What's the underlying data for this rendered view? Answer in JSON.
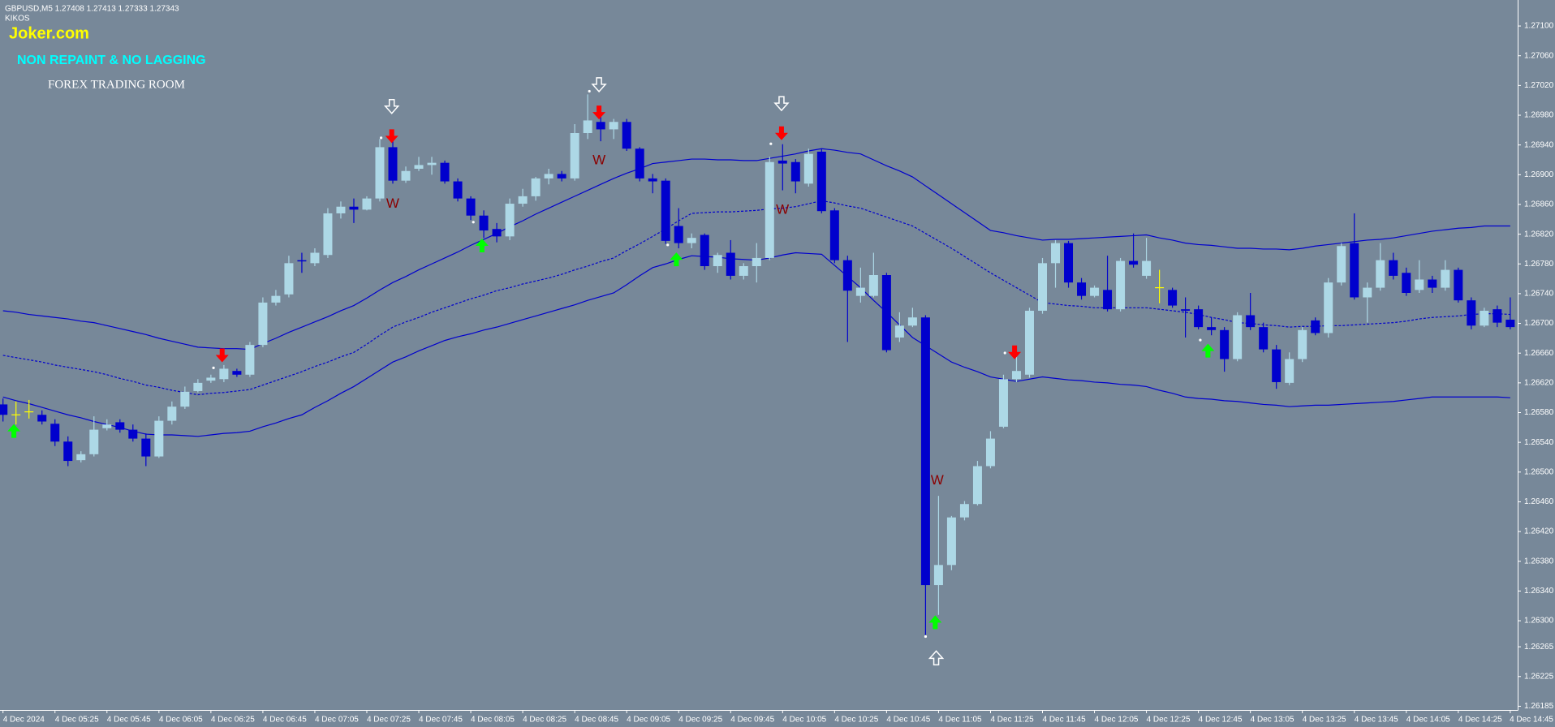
{
  "header": {
    "symbol_line": "GBPUSD,M5  1.27408 1.27413 1.27333 1.27343",
    "indicator": "KIKOS",
    "brand": "Joker.com",
    "tagline": "NON REPAINT & NO LAGGING",
    "room": "FOREX TRADING ROOM"
  },
  "chart_data": {
    "type": "candlestick",
    "background": "#778899",
    "up_color": "#add8e6",
    "down_color": "#0000cd",
    "doji_color": "#ffff00",
    "ylim": [
      1.2618,
      1.27135
    ],
    "yticks": [
      {
        "value": 1.271,
        "label": "1.27100"
      },
      {
        "value": 1.2706,
        "label": "1.27060"
      },
      {
        "value": 1.2702,
        "label": "1.27020"
      },
      {
        "value": 1.2698,
        "label": "1.26980"
      },
      {
        "value": 1.2694,
        "label": "1.26940"
      },
      {
        "value": 1.269,
        "label": "1.26900"
      },
      {
        "value": 1.2686,
        "label": "1.26860"
      },
      {
        "value": 1.2682,
        "label": "1.26820"
      },
      {
        "value": 1.2678,
        "label": "1.26780"
      },
      {
        "value": 1.2674,
        "label": "1.26740"
      },
      {
        "value": 1.267,
        "label": "1.26700"
      },
      {
        "value": 1.2666,
        "label": "1.26660"
      },
      {
        "value": 1.2662,
        "label": "1.26620"
      },
      {
        "value": 1.2658,
        "label": "1.26580"
      },
      {
        "value": 1.2654,
        "label": "1.26540"
      },
      {
        "value": 1.265,
        "label": "1.26500"
      },
      {
        "value": 1.2646,
        "label": "1.26460"
      },
      {
        "value": 1.2642,
        "label": "1.26420"
      },
      {
        "value": 1.2638,
        "label": "1.26380"
      },
      {
        "value": 1.2634,
        "label": "1.26340"
      },
      {
        "value": 1.263,
        "label": "1.26300"
      },
      1.26265,
      1.26225,
      1.26185
    ],
    "categories": [
      "4 Dec 2024",
      null,
      null,
      null,
      "4 Dec 05:25",
      null,
      null,
      null,
      "4 Dec 05:45",
      null,
      null,
      null,
      "4 Dec 06:05",
      null,
      null,
      null,
      "4 Dec 06:25",
      null,
      null,
      null,
      "4 Dec 06:45",
      null,
      null,
      null,
      "4 Dec 07:05",
      null,
      null,
      null,
      "4 Dec 07:25",
      null,
      null,
      null,
      "4 Dec 07:45",
      null,
      null,
      null,
      "4 Dec 08:05",
      null,
      null,
      null,
      "4 Dec 08:25",
      null,
      null,
      null,
      "4 Dec 08:45",
      null,
      null,
      null,
      "4 Dec 09:05",
      null,
      null,
      null,
      "4 Dec 09:25",
      null,
      null,
      null,
      "4 Dec 09:45",
      null,
      null,
      null,
      "4 Dec 10:05",
      null,
      null,
      null,
      "4 Dec 10:25",
      null,
      null,
      null,
      "4 Dec 10:45",
      null,
      null,
      null,
      "4 Dec 11:05",
      null,
      null,
      null,
      "4 Dec 11:25",
      null,
      null,
      null,
      "4 Dec 11:45",
      null,
      null,
      null,
      "4 Dec 12:05",
      null,
      null,
      null,
      "4 Dec 12:25",
      null,
      null,
      null,
      "4 Dec 12:45",
      null,
      null,
      null,
      "4 Dec 13:05",
      null,
      null,
      null,
      "4 Dec 13:25",
      null,
      null,
      null,
      "4 Dec 13:45",
      null,
      null,
      null,
      "4 Dec 14:05",
      null,
      null,
      null,
      "4 Dec 14:25",
      null,
      null,
      null,
      "4 Dec 14:45"
    ],
    "open": [
      1.26591,
      1.26577,
      1.26581,
      1.26577,
      1.26565,
      1.26541,
      1.26516,
      1.26524,
      1.26559,
      1.26567,
      1.26557,
      1.26545,
      1.26521,
      1.26569,
      1.26588,
      1.26609,
      1.26623,
      1.26625,
      1.26636,
      1.26631,
      1.26671,
      1.26728,
      1.26739,
      1.26785,
      1.26781,
      1.26792,
      1.26848,
      1.26857,
      1.26853,
      1.26868,
      1.26937,
      1.26892,
      1.26908,
      1.26913,
      1.26916,
      1.26891,
      1.26868,
      1.26845,
      1.26827,
      1.26817,
      1.26861,
      1.26871,
      1.26895,
      1.26901,
      1.26895,
      1.26956,
      1.26971,
      1.26961,
      1.26971,
      1.26935,
      1.26895,
      1.26892,
      1.26831,
      1.26808,
      1.26819,
      1.26777,
      1.26795,
      1.26764,
      1.26777,
      1.26788,
      1.26919,
      1.26917,
      1.26888,
      1.26931,
      1.26852,
      1.26785,
      1.26737,
      1.26737,
      1.26765,
      1.26681,
      1.26697,
      1.26708,
      1.26348,
      1.26375,
      1.26439,
      1.26457,
      1.26508,
      1.26561,
      1.26625,
      1.26631,
      1.26717,
      1.26781,
      1.26808,
      1.26755,
      1.26737,
      1.26745,
      1.26719,
      1.26784,
      1.26764,
      1.26748,
      1.26745,
      1.26719,
      1.26719,
      1.26695,
      1.26691,
      1.26652,
      1.26711,
      1.26695,
      1.26665,
      1.2662,
      1.26652,
      1.26704,
      1.26687,
      1.26755,
      1.26808,
      1.26735,
      1.26748,
      1.26785,
      1.26768,
      1.26745,
      1.26759,
      1.26748,
      1.26772,
      1.26731,
      1.26697,
      1.26719,
      1.26705
    ],
    "high": [
      1.26599,
      1.26595,
      1.26597,
      1.26583,
      1.26571,
      1.26548,
      1.26528,
      1.26575,
      1.26571,
      1.26571,
      1.26564,
      1.26552,
      1.26575,
      1.26595,
      1.26615,
      1.26625,
      1.26631,
      1.26644,
      1.26639,
      1.26675,
      1.26735,
      1.26745,
      1.26791,
      1.26795,
      1.26801,
      1.26855,
      1.26864,
      1.26868,
      1.26871,
      1.26948,
      1.26948,
      1.26911,
      1.26924,
      1.26924,
      1.26919,
      1.26895,
      1.26871,
      1.26852,
      1.26835,
      1.26868,
      1.26881,
      1.26897,
      1.26908,
      1.26905,
      1.26968,
      1.27008,
      1.26985,
      1.26975,
      1.26975,
      1.26937,
      1.26901,
      1.26895,
      1.26855,
      1.26821,
      1.26821,
      1.26795,
      1.26812,
      1.26781,
      1.26808,
      1.26924,
      1.26941,
      1.26921,
      1.26935,
      1.26935,
      1.26855,
      1.26791,
      1.26775,
      1.26795,
      1.26768,
      1.26715,
      1.26721,
      1.26711,
      1.26468,
      1.26441,
      1.26461,
      1.26515,
      1.26555,
      1.26631,
      1.26655,
      1.26721,
      1.26788,
      1.26812,
      1.26811,
      1.26761,
      1.26751,
      1.26791,
      1.26788,
      1.26821,
      1.26815,
      1.26772,
      1.26748,
      1.26735,
      1.26724,
      1.26708,
      1.26695,
      1.26715,
      1.26741,
      1.26701,
      1.26671,
      1.26661,
      1.26695,
      1.26708,
      1.26761,
      1.26808,
      1.26848,
      1.26755,
      1.26808,
      1.26795,
      1.26775,
      1.26785,
      1.26764,
      1.26785,
      1.26775,
      1.26735,
      1.26721,
      1.26724,
      1.26735
    ],
    "low": [
      1.26568,
      1.26564,
      1.26572,
      1.26564,
      1.26535,
      1.26508,
      1.26513,
      1.26521,
      1.26556,
      1.26553,
      1.26541,
      1.26508,
      1.26519,
      1.26564,
      1.26585,
      1.26607,
      1.2662,
      1.26621,
      1.26628,
      1.26628,
      1.26668,
      1.26724,
      1.26735,
      1.26768,
      1.26777,
      1.26788,
      1.26841,
      1.26835,
      1.26852,
      1.26864,
      1.26888,
      1.26889,
      1.26905,
      1.269,
      1.26888,
      1.26864,
      1.26839,
      1.26815,
      1.26809,
      1.26812,
      1.26857,
      1.26865,
      1.26887,
      1.26891,
      1.26892,
      1.26948,
      1.26945,
      1.26948,
      1.26932,
      1.26891,
      1.26875,
      1.26807,
      1.26801,
      1.26801,
      1.26772,
      1.26768,
      1.26759,
      1.26759,
      1.26755,
      1.26785,
      1.26879,
      1.26875,
      1.26884,
      1.26848,
      1.26781,
      1.26675,
      1.26728,
      1.26735,
      1.26661,
      1.26675,
      1.26695,
      1.26281,
      1.26308,
      1.26368,
      1.26435,
      1.26455,
      1.26505,
      1.26559,
      1.26621,
      1.26627,
      1.26713,
      1.26748,
      1.26748,
      1.26732,
      1.26735,
      1.26716,
      1.26716,
      1.26775,
      1.2676,
      1.26727,
      1.26721,
      1.26681,
      1.26692,
      1.26684,
      1.26635,
      1.26649,
      1.26691,
      1.26661,
      1.26612,
      1.26617,
      1.26648,
      1.26684,
      1.26681,
      1.26751,
      1.26732,
      1.26701,
      1.26744,
      1.26759,
      1.26737,
      1.26741,
      1.26741,
      1.26744,
      1.26728,
      1.26692,
      1.26695,
      1.26695,
      1.26692
    ],
    "close": [
      1.26577,
      1.26577,
      1.26581,
      1.26568,
      1.26541,
      1.26515,
      1.26524,
      1.26557,
      1.26564,
      1.26557,
      1.26545,
      1.26521,
      1.26569,
      1.26588,
      1.26608,
      1.2662,
      1.26627,
      1.26639,
      1.26631,
      1.26671,
      1.26728,
      1.26737,
      1.26781,
      1.26784,
      1.26795,
      1.26848,
      1.26857,
      1.26853,
      1.26868,
      1.26937,
      1.26892,
      1.26905,
      1.26913,
      1.26916,
      1.26891,
      1.26868,
      1.26845,
      1.26825,
      1.26817,
      1.26861,
      1.26871,
      1.26895,
      1.26901,
      1.26895,
      1.26956,
      1.26973,
      1.26961,
      1.26971,
      1.26935,
      1.26895,
      1.26891,
      1.26811,
      1.26808,
      1.26815,
      1.26777,
      1.26792,
      1.26764,
      1.26777,
      1.26788,
      1.26917,
      1.26915,
      1.26891,
      1.26928,
      1.26851,
      1.26785,
      1.26744,
      1.26748,
      1.26765,
      1.26664,
      1.26697,
      1.26708,
      1.26348,
      1.26375,
      1.26439,
      1.26457,
      1.26508,
      1.26545,
      1.26625,
      1.26636,
      1.26717,
      1.26781,
      1.26808,
      1.26755,
      1.26737,
      1.26748,
      1.26719,
      1.26784,
      1.26779,
      1.26784,
      1.26748,
      1.26724,
      1.26717,
      1.26695,
      1.26691,
      1.26652,
      1.26711,
      1.26695,
      1.26665,
      1.26621,
      1.26652,
      1.26691,
      1.26687,
      1.26755,
      1.26804,
      1.26735,
      1.26748,
      1.26785,
      1.26764,
      1.26741,
      1.26759,
      1.26748,
      1.26772,
      1.26731,
      1.26697,
      1.26717,
      1.26701,
      1.26695
    ],
    "bands": [
      {
        "color": "#0000cd",
        "style": "solid",
        "values": [
          1.26717,
          1.26715,
          1.26712,
          1.2671,
          1.26708,
          1.26706,
          1.26703,
          1.26701,
          1.26697,
          1.26693,
          1.26689,
          1.26685,
          1.2668,
          1.26676,
          1.26672,
          1.26668,
          1.26667,
          1.26666,
          1.26666,
          1.26665,
          1.26673,
          1.2668,
          1.26688,
          1.26695,
          1.26702,
          1.26709,
          1.26717,
          1.26724,
          1.26734,
          1.26745,
          1.26755,
          1.26763,
          1.26772,
          1.2678,
          1.26788,
          1.26796,
          1.26805,
          1.26813,
          1.26821,
          1.2683,
          1.26838,
          1.26847,
          1.26855,
          1.26863,
          1.26871,
          1.26879,
          1.26887,
          1.26895,
          1.26902,
          1.26908,
          1.26915,
          1.26917,
          1.26919,
          1.26921,
          1.26921,
          1.2692,
          1.2692,
          1.26919,
          1.26919,
          1.26922,
          1.26925,
          1.26928,
          1.26932,
          1.26935,
          1.26933,
          1.2693,
          1.26928,
          1.2692,
          1.26912,
          1.26905,
          1.26897,
          1.26885,
          1.26873,
          1.26861,
          1.26849,
          1.26837,
          1.26825,
          1.26822,
          1.26818,
          1.26815,
          1.26812,
          1.26813,
          1.26813,
          1.26814,
          1.26815,
          1.26816,
          1.26817,
          1.26818,
          1.26819,
          1.26815,
          1.26812,
          1.26808,
          1.26806,
          1.26805,
          1.26803,
          1.26801,
          1.26801,
          1.268,
          1.268,
          1.26799,
          1.26801,
          1.26804,
          1.26806,
          1.26808,
          1.2681,
          1.26812,
          1.26813,
          1.26815,
          1.26818,
          1.26821,
          1.26824,
          1.26826,
          1.26828,
          1.26829,
          1.26831,
          1.26831,
          1.26831
        ]
      },
      {
        "color": "#0000cd",
        "style": "dashed",
        "values": [
          1.26657,
          1.26654,
          1.26651,
          1.26648,
          1.26644,
          1.26641,
          1.26638,
          1.26635,
          1.26631,
          1.26626,
          1.26622,
          1.26617,
          1.26614,
          1.2661,
          1.26607,
          1.26604,
          1.26606,
          1.26607,
          1.26609,
          1.26611,
          1.26617,
          1.26623,
          1.26629,
          1.26635,
          1.26642,
          1.26648,
          1.26655,
          1.26661,
          1.26672,
          1.26684,
          1.26695,
          1.26702,
          1.26708,
          1.26715,
          1.26721,
          1.26727,
          1.26733,
          1.26738,
          1.26744,
          1.26748,
          1.26753,
          1.26757,
          1.26761,
          1.26766,
          1.26772,
          1.26777,
          1.26783,
          1.26788,
          1.26798,
          1.26807,
          1.26817,
          1.26827,
          1.26838,
          1.26848,
          1.26849,
          1.2685,
          1.2685,
          1.26851,
          1.26852,
          1.26854,
          1.26855,
          1.26857,
          1.26861,
          1.26865,
          1.26862,
          1.26858,
          1.26855,
          1.26849,
          1.26843,
          1.26837,
          1.26831,
          1.26821,
          1.26811,
          1.26801,
          1.2679,
          1.26779,
          1.26768,
          1.26758,
          1.26748,
          1.26738,
          1.26728,
          1.26726,
          1.26724,
          1.26723,
          1.26721,
          1.26721,
          1.26721,
          1.26721,
          1.26721,
          1.26719,
          1.26717,
          1.26715,
          1.26712,
          1.26708,
          1.26705,
          1.26701,
          1.267,
          1.26698,
          1.26697,
          1.26695,
          1.26696,
          1.26696,
          1.26697,
          1.26697,
          1.26698,
          1.26699,
          1.267,
          1.26701,
          1.26703,
          1.26706,
          1.26708,
          1.26709,
          1.2671,
          1.26712,
          1.26713,
          1.26713,
          1.26712
        ]
      },
      {
        "color": "#0000cd",
        "style": "solid",
        "values": [
          1.26601,
          1.26596,
          1.26592,
          1.26587,
          1.26582,
          1.26577,
          1.26573,
          1.26568,
          1.26564,
          1.2656,
          1.26555,
          1.26551,
          1.2655,
          1.2655,
          1.26549,
          1.26548,
          1.2655,
          1.26552,
          1.26553,
          1.26555,
          1.26561,
          1.26566,
          1.26572,
          1.26577,
          1.26587,
          1.26596,
          1.26606,
          1.26615,
          1.26626,
          1.26637,
          1.26648,
          1.26655,
          1.26663,
          1.2667,
          1.26677,
          1.26682,
          1.26686,
          1.26691,
          1.26695,
          1.267,
          1.26705,
          1.2671,
          1.26715,
          1.2672,
          1.26725,
          1.26731,
          1.26736,
          1.26741,
          1.26752,
          1.26764,
          1.26775,
          1.2678,
          1.26786,
          1.26791,
          1.2679,
          1.26789,
          1.26787,
          1.26786,
          1.26785,
          1.26788,
          1.26792,
          1.26795,
          1.26794,
          1.26793,
          1.26778,
          1.26763,
          1.26748,
          1.26731,
          1.26715,
          1.26698,
          1.26681,
          1.2667,
          1.26659,
          1.26648,
          1.26641,
          1.26635,
          1.26628,
          1.26625,
          1.26622,
          1.26625,
          1.26628,
          1.26626,
          1.26624,
          1.26623,
          1.26621,
          1.2662,
          1.26618,
          1.26617,
          1.26615,
          1.2661,
          1.26606,
          1.26601,
          1.26599,
          1.26598,
          1.26596,
          1.26595,
          1.26593,
          1.26591,
          1.2659,
          1.26588,
          1.26589,
          1.2659,
          1.2659,
          1.26591,
          1.26592,
          1.26593,
          1.26594,
          1.26595,
          1.26597,
          1.26599,
          1.26601,
          1.26601,
          1.26601,
          1.26601,
          1.26601,
          1.26601,
          1.266
        ]
      }
    ],
    "annotations": [
      "W",
      "W",
      "W",
      "W"
    ]
  }
}
